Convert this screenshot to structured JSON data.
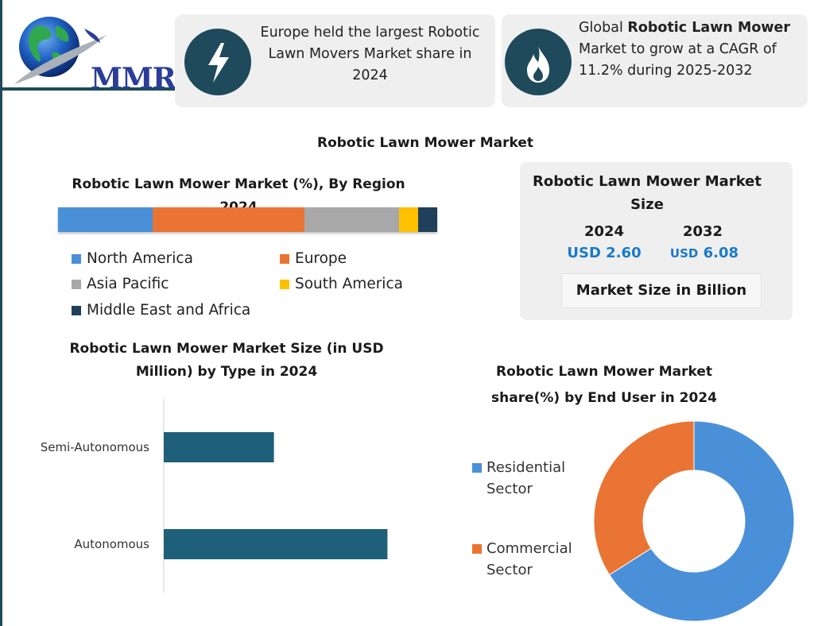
{
  "logo": {
    "text": "MMR"
  },
  "cards": [
    {
      "icon": "lightning-icon",
      "text": "Europe held the largest Robotic Lawn Movers Market share in 2024"
    },
    {
      "icon": "flame-icon",
      "prefix": "Global ",
      "bold": "Robotic Lawn Mower",
      "suffix": " Market to grow at a CAGR of 11.2% during 2025-2032"
    }
  ],
  "main_title": "Robotic Lawn Mower Market",
  "region": {
    "title": "Robotic Lawn Mower Market (%), By Region 2024",
    "legend": [
      "North America",
      "Europe",
      "Asia Pacific",
      "South America",
      "Middle East and Africa"
    ]
  },
  "size_panel": {
    "title": "Robotic Lawn Mower Market Size",
    "year_a": "2024",
    "year_b": "2032",
    "value_a": "USD 2.60",
    "value_b_usd": "USD",
    "value_b_num": "6.08",
    "unit": "Market Size in Billion"
  },
  "type_chart_title": "Robotic Lawn Mower Market Size (in USD Million)  by Type in 2024",
  "enduser_title": "Robotic Lawn Mower Market share(%)  by End User in 2024",
  "enduser_legend": [
    "Residential Sector",
    "Commercial Sector"
  ],
  "colors": {
    "north_america": "#4a90d9",
    "europe": "#ea7433",
    "asia_pacific": "#a8a8a8",
    "south_america": "#ffc000",
    "mea": "#1f3f5b",
    "bar": "#1e5f7a",
    "residential": "#4a90d9",
    "commercial": "#ea7433",
    "dark": "#1e4a5c"
  },
  "chart_data": [
    {
      "type": "bar",
      "orientation": "horizontal-stacked",
      "title": "Robotic Lawn Mower Market (%), By Region 2024",
      "categories": [
        "North America",
        "Europe",
        "Asia Pacific",
        "South America",
        "Middle East and Africa"
      ],
      "values": [
        25,
        40,
        25,
        5,
        5
      ],
      "legend": "bottom"
    },
    {
      "type": "bar",
      "orientation": "horizontal",
      "title": "Robotic Lawn Mower Market Size (in USD Million)  by Type in 2024",
      "categories": [
        "Semi-Autonomous",
        "Autonomous"
      ],
      "values": [
        33,
        67
      ],
      "grid": false
    },
    {
      "type": "pie",
      "style": "donut",
      "title": "Robotic Lawn Mower Market share(%)  by End User in 2024",
      "categories": [
        "Residential Sector",
        "Commercial Sector"
      ],
      "values": [
        66,
        34
      ],
      "legend": "left"
    }
  ]
}
